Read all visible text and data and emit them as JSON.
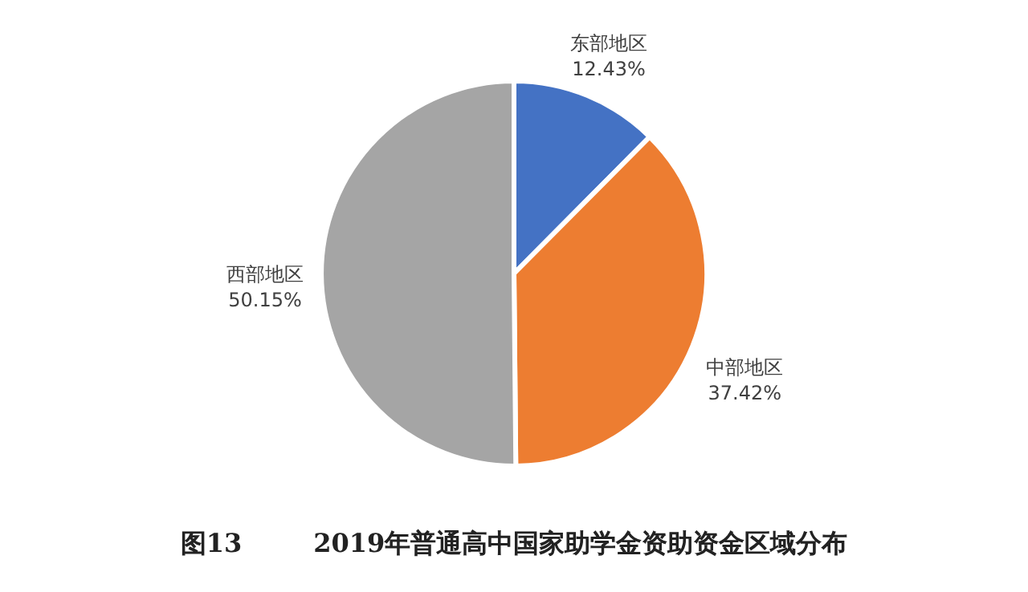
{
  "chart_data": {
    "type": "pie",
    "title": "图13        2019年普通高中国家助学金资助资金区域分布",
    "categories": [
      "东部地区",
      "中部地区",
      "西部地区"
    ],
    "values": [
      12.43,
      37.42,
      50.15
    ],
    "value_labels": [
      "12.43%",
      "37.42%",
      "50.15%"
    ],
    "colors": [
      "#4472c4",
      "#ed7d31",
      "#a5a5a5"
    ],
    "legend": false
  }
}
